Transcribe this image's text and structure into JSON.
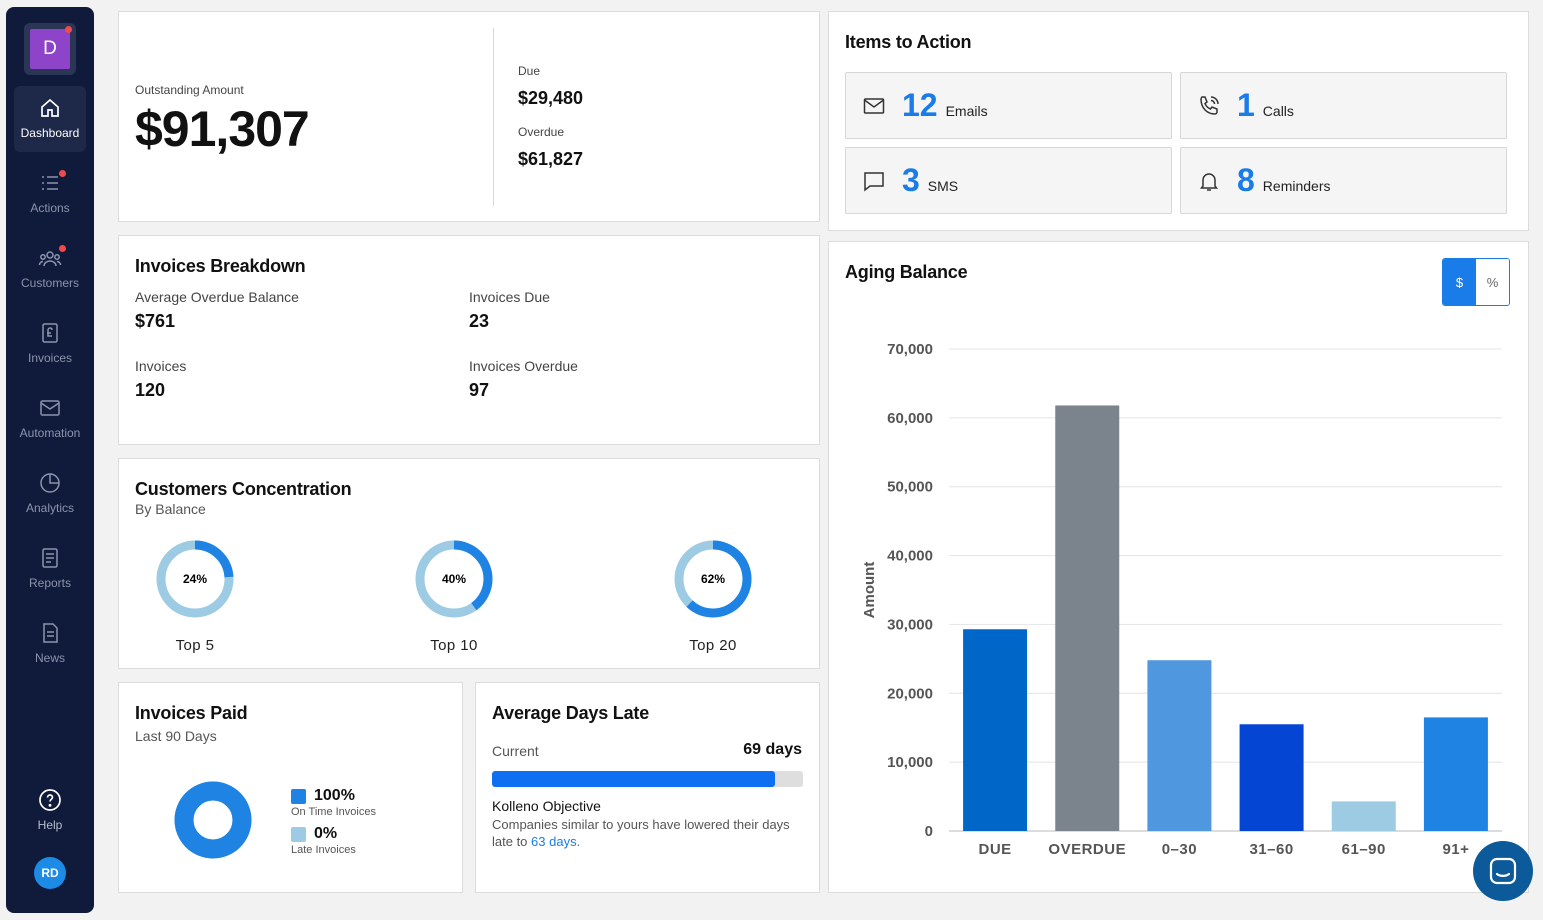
{
  "sidebar": {
    "brand_letter": "D",
    "items": [
      {
        "label": "Dashboard",
        "icon": "home-icon"
      },
      {
        "label": "Actions",
        "icon": "list-icon"
      },
      {
        "label": "Customers",
        "icon": "users-icon"
      },
      {
        "label": "Invoices",
        "icon": "invoice-icon"
      },
      {
        "label": "Automation",
        "icon": "mail-icon"
      },
      {
        "label": "Analytics",
        "icon": "pie-icon"
      },
      {
        "label": "Reports",
        "icon": "report-icon"
      },
      {
        "label": "News",
        "icon": "document-icon"
      }
    ],
    "help_label": "Help",
    "avatar_initials": "RD"
  },
  "outstanding": {
    "label": "Outstanding Amount",
    "amount": "$91,307",
    "due_label": "Due",
    "due_value": "$29,480",
    "overdue_label": "Overdue",
    "overdue_value": "$61,827"
  },
  "items_to_action": {
    "title": "Items to Action",
    "items": [
      {
        "count": "12",
        "label": "Emails",
        "icon": "envelope-icon"
      },
      {
        "count": "1",
        "label": "Calls",
        "icon": "phone-icon"
      },
      {
        "count": "3",
        "label": "SMS",
        "icon": "chat-icon"
      },
      {
        "count": "8",
        "label": "Reminders",
        "icon": "bell-icon"
      }
    ]
  },
  "breakdown": {
    "title": "Invoices Breakdown",
    "avg_overdue_label": "Average Overdue Balance",
    "avg_overdue_value": "$761",
    "invoices_due_label": "Invoices Due",
    "invoices_due_value": "23",
    "invoices_label": "Invoices",
    "invoices_value": "120",
    "invoices_overdue_label": "Invoices Overdue",
    "invoices_overdue_value": "97"
  },
  "concentration": {
    "title": "Customers Concentration",
    "subtitle": "By Balance",
    "donuts": [
      {
        "label": "Top 5",
        "pct": 24,
        "text": "24%"
      },
      {
        "label": "Top 10",
        "pct": 40,
        "text": "40%"
      },
      {
        "label": "Top 20",
        "pct": 62,
        "text": "62%"
      }
    ]
  },
  "invoices_paid": {
    "title": "Invoices Paid",
    "subtitle": "Last 90 Days",
    "on_time_value": "100%",
    "on_time_label": "On Time Invoices",
    "late_value": "0%",
    "late_label": "Late Invoices",
    "on_time_fraction": 1.0
  },
  "days_late": {
    "title": "Average Days Late",
    "current_label": "Current",
    "current_value": "69 days",
    "progress_fraction": 0.91,
    "objective_title": "Kolleno Objective",
    "objective_text": "Companies similar to yours have lowered their days late to",
    "objective_link": "63 days."
  },
  "aging": {
    "title": "Aging Balance",
    "toggle_dollar": "$",
    "toggle_percent": "%"
  },
  "colors": {
    "accent": "#1a7ce8",
    "sidebar": "#101a3a"
  },
  "chart_data": {
    "type": "bar",
    "categories": [
      "DUE",
      "OVERDUE",
      "0–30",
      "31–60",
      "61–90",
      "91+"
    ],
    "values": [
      29300,
      61800,
      24800,
      15500,
      4300,
      16500
    ],
    "colors": [
      "#0067c9",
      "#7b838d",
      "#4f97df",
      "#0445d4",
      "#9ccbe3",
      "#1f83e3"
    ],
    "ylabel": "Amount",
    "ylim": [
      0,
      70000
    ],
    "yticks": [
      0,
      10000,
      20000,
      30000,
      40000,
      50000,
      60000,
      70000
    ],
    "ytick_labels": [
      "0",
      "10,000",
      "20,000",
      "30,000",
      "40,000",
      "50,000",
      "60,000",
      "70,000"
    ],
    "grid": true
  }
}
